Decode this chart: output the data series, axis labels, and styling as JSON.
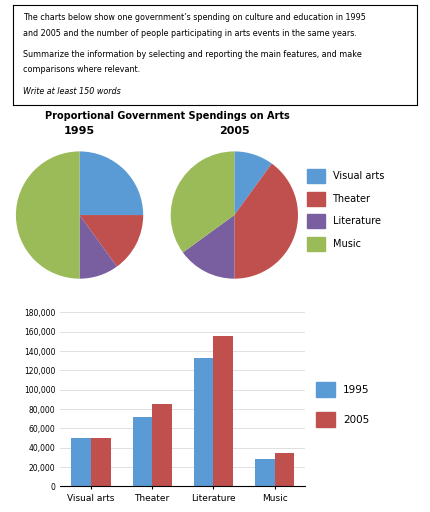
{
  "text_box_lines": [
    "The charts below show one government’s spending on culture and education in 1995",
    "and 2005 and the number of people participating in arts events in the same years.",
    "Summarize the information by selecting and reporting the main features, and make",
    "comparisons where relevant.",
    "Write at least 150 words"
  ],
  "text_italic_index": 4,
  "pie_title": "Proportional Government Spendings on Arts",
  "pie_categories": [
    "Visual arts",
    "Theater",
    "Literature",
    "Music"
  ],
  "pie_colors": [
    "#5b9bd5",
    "#c0504d",
    "#7a5fa0",
    "#9bbb59"
  ],
  "pie_1995": [
    25,
    15,
    10,
    50
  ],
  "pie_2005": [
    10,
    40,
    15,
    35
  ],
  "bar_categories": [
    "Visual arts",
    "Theater",
    "Literature",
    "Music"
  ],
  "bar_1995": [
    50000,
    72000,
    133000,
    28000
  ],
  "bar_2005": [
    50000,
    85000,
    155000,
    35000
  ],
  "bar_color_1995": "#5b9bd5",
  "bar_color_2005": "#c0504d",
  "bar_ylim": [
    0,
    180000
  ],
  "bar_yticks": [
    0,
    20000,
    40000,
    60000,
    80000,
    100000,
    120000,
    140000,
    160000,
    180000
  ],
  "bar_ytick_labels": [
    "0",
    "20,000",
    "40,000",
    "60,000",
    "80,000",
    "100,000",
    "120,000",
    "140,000",
    "160,000",
    "180,000"
  ]
}
